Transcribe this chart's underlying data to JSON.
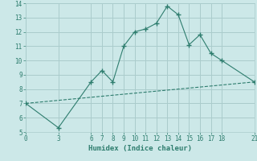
{
  "xlabel": "Humidex (Indice chaleur)",
  "line1_x": [
    0,
    3,
    6,
    7,
    8,
    9,
    10,
    11,
    12,
    13,
    14,
    15,
    16,
    17,
    18,
    21
  ],
  "line1_y": [
    7.0,
    5.3,
    8.5,
    9.3,
    8.5,
    11.0,
    12.0,
    12.2,
    12.6,
    13.8,
    13.2,
    11.1,
    11.8,
    10.5,
    10.0,
    8.5
  ],
  "line2_x": [
    0,
    21
  ],
  "line2_y": [
    7.0,
    8.5
  ],
  "line_color": "#2e7d6e",
  "bg_color": "#cce8e8",
  "grid_color": "#aacccc",
  "xticks": [
    0,
    3,
    6,
    7,
    8,
    9,
    10,
    11,
    12,
    13,
    14,
    15,
    16,
    17,
    18,
    21
  ],
  "yticks": [
    5,
    6,
    7,
    8,
    9,
    10,
    11,
    12,
    13,
    14
  ],
  "xlim": [
    0,
    21
  ],
  "ylim": [
    5,
    14
  ]
}
